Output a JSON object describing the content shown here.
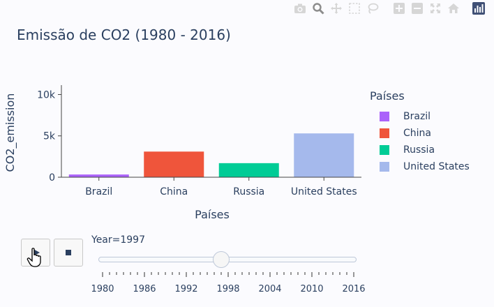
{
  "modebar": {
    "icons": [
      "camera-icon",
      "zoom-icon",
      "pan-icon",
      "box-select-icon",
      "lasso-icon",
      "zoom-in-icon",
      "zoom-out-icon",
      "autoscale-icon",
      "home-icon",
      "plotly-logo-icon"
    ]
  },
  "chart_data": {
    "type": "bar",
    "title": "Emissão de CO2 (1980 - 2016)",
    "xlabel": "Países",
    "ylabel": "CO2_emission",
    "categories": [
      "Brazil",
      "China",
      "Russia",
      "United States"
    ],
    "values": [
      330,
      3100,
      1700,
      5300
    ],
    "ylim": [
      0,
      10800
    ],
    "yticks": [
      0,
      5000,
      10000
    ],
    "ytick_labels": [
      "0",
      "5k",
      "10k"
    ],
    "colors": [
      "#ab63fa",
      "#ef553b",
      "#00cc96",
      "#a5b9ec"
    ],
    "grid": false
  },
  "legend": {
    "title": "Países",
    "items": [
      {
        "label": "Brazil",
        "color": "#ab63fa"
      },
      {
        "label": "China",
        "color": "#ef553b"
      },
      {
        "label": "Russia",
        "color": "#00cc96"
      },
      {
        "label": "United States",
        "color": "#a5b9ec"
      }
    ]
  },
  "animation": {
    "current_label": "Year=1997",
    "current_year": 1997,
    "year_min": 1980,
    "year_max": 2016,
    "year_ticks": [
      "1980",
      "1986",
      "1992",
      "1998",
      "2004",
      "2010",
      "2016"
    ]
  }
}
